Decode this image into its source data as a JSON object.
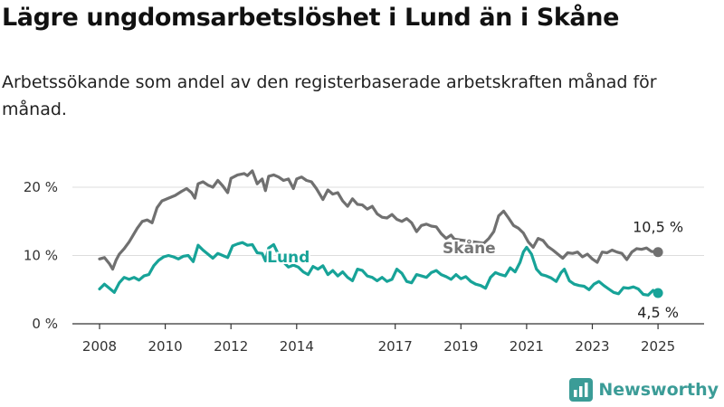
{
  "title": "Lägre ungdomsarbetslöshet i Lund än i Skåne",
  "subtitle": "Arbetssökande som andel av den registerbaserade arbetskraften månad för månad.",
  "brand": {
    "name": "Newsworthy",
    "icon": "bar-chart-logo-icon"
  },
  "colors": {
    "lund": "#17a398",
    "skane": "#707070",
    "grid": "#dddddd",
    "brand": "#3b9c97"
  },
  "chart_data": {
    "type": "line",
    "title": "Lägre ungdomsarbetslöshet i Lund än i Skåne",
    "subtitle": "Arbetssökande som andel av den registerbaserade arbetskraften månad för månad.",
    "ylim": [
      0,
      22
    ],
    "xlim": [
      2007.6,
      2025.5
    ],
    "y_ticks": [
      {
        "value": 0,
        "label": "0 %"
      },
      {
        "value": 10,
        "label": "10 %"
      },
      {
        "value": 20,
        "label": "20 %"
      }
    ],
    "x_ticks": [
      {
        "value": 2008,
        "label": "2008"
      },
      {
        "value": 2010,
        "label": "2010"
      },
      {
        "value": 2012,
        "label": "2012"
      },
      {
        "value": 2014,
        "label": "2014"
      },
      {
        "value": 2017,
        "label": "2017"
      },
      {
        "value": 2019,
        "label": "2019"
      },
      {
        "value": 2021,
        "label": "2021"
      },
      {
        "value": 2023,
        "label": "2023"
      },
      {
        "value": 2025,
        "label": "2025"
      }
    ],
    "grid": "horizontal",
    "series": [
      {
        "name": "Skåne",
        "color": "#707070",
        "end_label": "10,5 %",
        "points": [
          [
            2008.0,
            9.5
          ],
          [
            2008.15,
            9.7
          ],
          [
            2008.3,
            8.8
          ],
          [
            2008.4,
            8.0
          ],
          [
            2008.5,
            9.3
          ],
          [
            2008.6,
            10.2
          ],
          [
            2008.75,
            11.0
          ],
          [
            2008.9,
            12.0
          ],
          [
            2009.0,
            12.8
          ],
          [
            2009.15,
            14.0
          ],
          [
            2009.3,
            15.0
          ],
          [
            2009.45,
            15.2
          ],
          [
            2009.6,
            14.8
          ],
          [
            2009.75,
            17.0
          ],
          [
            2009.9,
            18.0
          ],
          [
            2010.1,
            18.4
          ],
          [
            2010.3,
            18.8
          ],
          [
            2010.5,
            19.4
          ],
          [
            2010.65,
            19.8
          ],
          [
            2010.8,
            19.2
          ],
          [
            2010.9,
            18.4
          ],
          [
            2011.0,
            20.5
          ],
          [
            2011.15,
            20.8
          ],
          [
            2011.3,
            20.3
          ],
          [
            2011.45,
            20.0
          ],
          [
            2011.6,
            21.0
          ],
          [
            2011.75,
            20.2
          ],
          [
            2011.9,
            19.2
          ],
          [
            2012.0,
            21.3
          ],
          [
            2012.2,
            21.8
          ],
          [
            2012.4,
            22.0
          ],
          [
            2012.5,
            21.7
          ],
          [
            2012.65,
            22.4
          ],
          [
            2012.8,
            20.5
          ],
          [
            2012.95,
            21.2
          ],
          [
            2013.05,
            19.5
          ],
          [
            2013.15,
            21.6
          ],
          [
            2013.3,
            21.8
          ],
          [
            2013.45,
            21.5
          ],
          [
            2013.6,
            21.0
          ],
          [
            2013.75,
            21.2
          ],
          [
            2013.9,
            19.8
          ],
          [
            2014.0,
            21.2
          ],
          [
            2014.15,
            21.5
          ],
          [
            2014.3,
            21.0
          ],
          [
            2014.45,
            20.8
          ],
          [
            2014.6,
            19.8
          ],
          [
            2014.8,
            18.2
          ],
          [
            2014.95,
            19.6
          ],
          [
            2015.1,
            19.0
          ],
          [
            2015.25,
            19.2
          ],
          [
            2015.4,
            18.0
          ],
          [
            2015.55,
            17.2
          ],
          [
            2015.7,
            18.3
          ],
          [
            2015.85,
            17.5
          ],
          [
            2016.0,
            17.4
          ],
          [
            2016.15,
            16.8
          ],
          [
            2016.3,
            17.2
          ],
          [
            2016.45,
            16.1
          ],
          [
            2016.6,
            15.6
          ],
          [
            2016.75,
            15.5
          ],
          [
            2016.9,
            16.0
          ],
          [
            2017.05,
            15.3
          ],
          [
            2017.2,
            15.0
          ],
          [
            2017.35,
            15.4
          ],
          [
            2017.5,
            14.8
          ],
          [
            2017.65,
            13.5
          ],
          [
            2017.8,
            14.4
          ],
          [
            2017.95,
            14.6
          ],
          [
            2018.1,
            14.3
          ],
          [
            2018.25,
            14.2
          ],
          [
            2018.4,
            13.2
          ],
          [
            2018.55,
            12.5
          ],
          [
            2018.7,
            13.0
          ],
          [
            2018.8,
            12.4
          ],
          [
            2019.7,
            11.8
          ],
          [
            2019.85,
            12.5
          ],
          [
            2020.0,
            13.5
          ],
          [
            2020.15,
            15.8
          ],
          [
            2020.3,
            16.5
          ],
          [
            2020.45,
            15.5
          ],
          [
            2020.6,
            14.4
          ],
          [
            2020.75,
            14.0
          ],
          [
            2020.9,
            13.3
          ],
          [
            2021.05,
            12.0
          ],
          [
            2021.2,
            11.2
          ],
          [
            2021.35,
            12.5
          ],
          [
            2021.5,
            12.2
          ],
          [
            2021.65,
            11.3
          ],
          [
            2021.8,
            10.8
          ],
          [
            2021.95,
            10.2
          ],
          [
            2022.1,
            9.6
          ],
          [
            2022.25,
            10.4
          ],
          [
            2022.4,
            10.3
          ],
          [
            2022.55,
            10.5
          ],
          [
            2022.7,
            9.8
          ],
          [
            2022.85,
            10.2
          ],
          [
            2023.0,
            9.5
          ],
          [
            2023.15,
            9.0
          ],
          [
            2023.3,
            10.5
          ],
          [
            2023.45,
            10.4
          ],
          [
            2023.6,
            10.8
          ],
          [
            2023.75,
            10.5
          ],
          [
            2023.9,
            10.3
          ],
          [
            2024.05,
            9.4
          ],
          [
            2024.2,
            10.5
          ],
          [
            2024.35,
            11.0
          ],
          [
            2024.5,
            10.9
          ],
          [
            2024.65,
            11.1
          ],
          [
            2024.8,
            10.6
          ],
          [
            2025.0,
            10.5
          ]
        ]
      },
      {
        "name": "Lund",
        "color": "#17a398",
        "end_label": "4,5 %",
        "points": [
          [
            2008.0,
            5.1
          ],
          [
            2008.15,
            5.8
          ],
          [
            2008.3,
            5.2
          ],
          [
            2008.45,
            4.6
          ],
          [
            2008.6,
            6.0
          ],
          [
            2008.75,
            6.8
          ],
          [
            2008.9,
            6.5
          ],
          [
            2009.05,
            6.8
          ],
          [
            2009.2,
            6.4
          ],
          [
            2009.35,
            7.0
          ],
          [
            2009.5,
            7.2
          ],
          [
            2009.65,
            8.5
          ],
          [
            2009.8,
            9.3
          ],
          [
            2009.95,
            9.8
          ],
          [
            2010.1,
            10.0
          ],
          [
            2010.25,
            9.8
          ],
          [
            2010.4,
            9.5
          ],
          [
            2010.55,
            9.9
          ],
          [
            2010.7,
            10.0
          ],
          [
            2010.85,
            9.1
          ],
          [
            2011.0,
            11.5
          ],
          [
            2011.15,
            10.8
          ],
          [
            2011.3,
            10.2
          ],
          [
            2011.45,
            9.6
          ],
          [
            2011.6,
            10.3
          ],
          [
            2011.75,
            10.0
          ],
          [
            2011.9,
            9.7
          ],
          [
            2012.05,
            11.4
          ],
          [
            2012.2,
            11.7
          ],
          [
            2012.35,
            11.9
          ],
          [
            2012.5,
            11.5
          ],
          [
            2012.65,
            11.6
          ],
          [
            2012.8,
            10.4
          ],
          [
            2012.95,
            10.3
          ],
          [
            2013.05,
            9.2
          ],
          [
            2013.15,
            11.1
          ],
          [
            2013.3,
            11.6
          ],
          [
            2013.45,
            10.1
          ],
          [
            2013.55,
            9.2
          ],
          [
            2013.65,
            8.8
          ],
          [
            2013.75,
            8.3
          ],
          [
            2013.9,
            8.6
          ],
          [
            2014.05,
            8.3
          ],
          [
            2014.2,
            7.6
          ],
          [
            2014.35,
            7.2
          ],
          [
            2014.5,
            8.4
          ],
          [
            2014.65,
            8.0
          ],
          [
            2014.8,
            8.5
          ],
          [
            2014.95,
            7.2
          ],
          [
            2015.1,
            7.8
          ],
          [
            2015.25,
            7.0
          ],
          [
            2015.4,
            7.6
          ],
          [
            2015.55,
            6.8
          ],
          [
            2015.7,
            6.3
          ],
          [
            2015.85,
            8.0
          ],
          [
            2016.0,
            7.8
          ],
          [
            2016.15,
            7.0
          ],
          [
            2016.3,
            6.8
          ],
          [
            2016.45,
            6.3
          ],
          [
            2016.6,
            6.8
          ],
          [
            2016.75,
            6.2
          ],
          [
            2016.9,
            6.5
          ],
          [
            2017.05,
            8.0
          ],
          [
            2017.2,
            7.4
          ],
          [
            2017.35,
            6.2
          ],
          [
            2017.5,
            6.0
          ],
          [
            2017.65,
            7.2
          ],
          [
            2017.8,
            7.0
          ],
          [
            2017.95,
            6.8
          ],
          [
            2018.1,
            7.5
          ],
          [
            2018.25,
            7.8
          ],
          [
            2018.4,
            7.2
          ],
          [
            2018.55,
            6.9
          ],
          [
            2018.7,
            6.5
          ],
          [
            2018.85,
            7.2
          ],
          [
            2019.0,
            6.6
          ],
          [
            2019.15,
            6.9
          ],
          [
            2019.3,
            6.2
          ],
          [
            2019.45,
            5.8
          ],
          [
            2019.6,
            5.6
          ],
          [
            2019.75,
            5.2
          ],
          [
            2019.9,
            6.8
          ],
          [
            2020.05,
            7.5
          ],
          [
            2020.2,
            7.2
          ],
          [
            2020.35,
            7.0
          ],
          [
            2020.5,
            8.2
          ],
          [
            2020.65,
            7.6
          ],
          [
            2020.8,
            9.0
          ],
          [
            2020.9,
            10.5
          ],
          [
            2021.0,
            11.2
          ],
          [
            2021.15,
            10.2
          ],
          [
            2021.3,
            8.0
          ],
          [
            2021.45,
            7.2
          ],
          [
            2021.6,
            7.0
          ],
          [
            2021.75,
            6.7
          ],
          [
            2021.9,
            6.2
          ],
          [
            2022.05,
            7.5
          ],
          [
            2022.15,
            8.0
          ],
          [
            2022.3,
            6.3
          ],
          [
            2022.45,
            5.8
          ],
          [
            2022.6,
            5.6
          ],
          [
            2022.75,
            5.5
          ],
          [
            2022.9,
            5.0
          ],
          [
            2023.05,
            5.8
          ],
          [
            2023.2,
            6.2
          ],
          [
            2023.35,
            5.6
          ],
          [
            2023.5,
            5.1
          ],
          [
            2023.65,
            4.6
          ],
          [
            2023.8,
            4.4
          ],
          [
            2023.95,
            5.3
          ],
          [
            2024.1,
            5.2
          ],
          [
            2024.25,
            5.4
          ],
          [
            2024.4,
            5.1
          ],
          [
            2024.55,
            4.3
          ],
          [
            2024.7,
            4.2
          ],
          [
            2024.85,
            4.9
          ],
          [
            2025.0,
            4.5
          ]
        ]
      }
    ]
  }
}
